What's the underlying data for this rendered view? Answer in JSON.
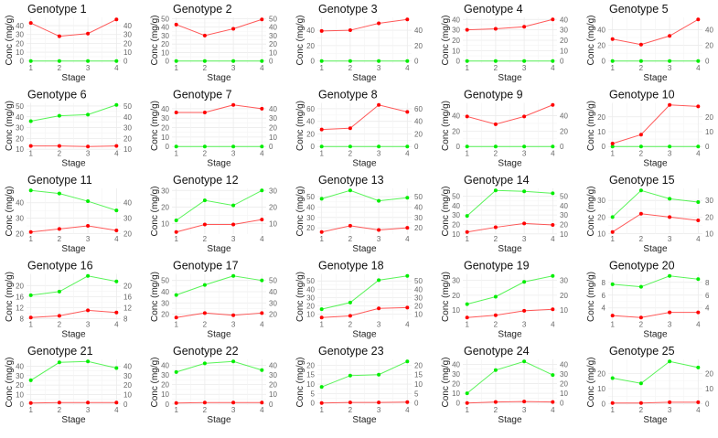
{
  "chart_data": {
    "type": "line",
    "layout": "5x5 small multiples",
    "xlabel": "Stage",
    "ylabel": "Conc (mg/g)",
    "x": [
      1,
      2,
      3,
      4
    ],
    "grid": true,
    "secondary_axis": "right, duplicate of left",
    "colors": {
      "red_series": "#ff0000",
      "green_series": "#00ee00"
    },
    "panels": [
      {
        "title": "Genotype 1",
        "yticks": [
          0,
          10,
          20,
          30,
          40
        ],
        "red": [
          43,
          28,
          31,
          47
        ],
        "green": [
          0,
          0,
          0,
          0
        ]
      },
      {
        "title": "Genotype 2",
        "yticks": [
          0,
          10,
          20,
          30,
          40,
          50
        ],
        "red": [
          43,
          30,
          38,
          49
        ],
        "green": [
          0,
          0,
          0,
          0
        ]
      },
      {
        "title": "Genotype 3",
        "yticks": [
          0,
          20,
          40
        ],
        "red": [
          39,
          40,
          49,
          54
        ],
        "green": [
          0,
          0,
          0,
          0
        ]
      },
      {
        "title": "Genotype 4",
        "yticks": [
          0,
          10,
          20,
          30,
          40
        ],
        "red": [
          30,
          31,
          33,
          40
        ],
        "green": [
          0,
          0,
          0,
          0
        ]
      },
      {
        "title": "Genotype 5",
        "yticks": [
          0,
          20,
          40
        ],
        "red": [
          28,
          21,
          32,
          53
        ],
        "green": [
          0,
          0,
          0,
          0
        ]
      },
      {
        "title": "Genotype 6",
        "yticks": [
          10,
          20,
          30,
          40,
          50
        ],
        "red": [
          13,
          13,
          12.5,
          13
        ],
        "green": [
          36,
          41,
          42,
          51
        ]
      },
      {
        "title": "Genotype 7",
        "yticks": [
          0,
          10,
          20,
          30,
          40
        ],
        "red": [
          36,
          36,
          44,
          40
        ],
        "green": [
          0,
          0,
          0,
          0
        ]
      },
      {
        "title": "Genotype 8",
        "yticks": [
          0,
          20,
          40,
          60
        ],
        "red": [
          27,
          29,
          66,
          55
        ],
        "green": [
          0,
          0,
          0,
          0
        ]
      },
      {
        "title": "Genotype 9",
        "yticks": [
          0,
          20,
          40
        ],
        "red": [
          39,
          29,
          39,
          54
        ],
        "green": [
          0,
          0,
          0,
          0
        ]
      },
      {
        "title": "Genotype 10",
        "yticks": [
          0,
          10,
          20
        ],
        "red": [
          2,
          8,
          28,
          27
        ],
        "green": [
          0,
          0,
          0,
          0
        ]
      },
      {
        "title": "Genotype 11",
        "yticks": [
          20,
          30,
          40
        ],
        "red": [
          21,
          23,
          25,
          22
        ],
        "green": [
          48,
          46,
          41,
          35
        ]
      },
      {
        "title": "Genotype 12",
        "yticks": [
          10,
          20,
          30
        ],
        "red": [
          5,
          9.5,
          9.5,
          12.5
        ],
        "green": [
          12,
          24,
          21,
          30
        ]
      },
      {
        "title": "Genotype 13",
        "yticks": [
          20,
          30,
          40,
          50
        ],
        "red": [
          16,
          22,
          18,
          20
        ],
        "green": [
          48,
          56,
          46,
          49
        ]
      },
      {
        "title": "Genotype 14",
        "yticks": [
          10,
          20,
          30,
          40,
          50
        ],
        "red": [
          12,
          17,
          21,
          19.5
        ],
        "green": [
          29,
          56,
          55,
          53
        ]
      },
      {
        "title": "Genotype 15",
        "yticks": [
          10,
          20,
          30
        ],
        "red": [
          11,
          22,
          20,
          18
        ],
        "green": [
          20,
          36,
          31,
          29
        ]
      },
      {
        "title": "Genotype 16",
        "yticks": [
          8,
          12,
          16,
          20
        ],
        "red": [
          8.4,
          9,
          11,
          10.2
        ],
        "green": [
          16.5,
          17.8,
          23.5,
          21.5
        ]
      },
      {
        "title": "Genotype 17",
        "yticks": [
          20,
          30,
          40,
          50
        ],
        "red": [
          17,
          21,
          19,
          21
        ],
        "green": [
          37,
          46,
          54,
          50
        ]
      },
      {
        "title": "Genotype 18",
        "yticks": [
          10,
          20,
          30,
          40,
          50
        ],
        "red": [
          6,
          8,
          17,
          18
        ],
        "green": [
          16,
          24,
          51,
          56
        ]
      },
      {
        "title": "Genotype 19",
        "yticks": [
          10,
          20,
          30
        ],
        "red": [
          5,
          6.5,
          9.5,
          10.5
        ],
        "green": [
          14,
          19,
          29,
          33
        ]
      },
      {
        "title": "Genotype 20",
        "yticks": [
          4,
          6,
          8
        ],
        "red": [
          2.8,
          2.5,
          3.3,
          3.3
        ],
        "green": [
          7.7,
          7.3,
          9,
          8.5
        ]
      },
      {
        "title": "Genotype 21",
        "yticks": [
          0,
          10,
          20,
          30,
          40
        ],
        "red": [
          1,
          1.5,
          1.5,
          1.5
        ],
        "green": [
          25,
          44,
          45,
          38
        ]
      },
      {
        "title": "Genotype 22",
        "yticks": [
          0,
          10,
          20,
          30,
          40
        ],
        "red": [
          1,
          1.5,
          1.5,
          1.5
        ],
        "green": [
          33,
          42,
          44,
          35
        ]
      },
      {
        "title": "Genotype 23",
        "yticks": [
          0,
          5,
          10,
          15,
          20
        ],
        "red": [
          0,
          0.3,
          0.3,
          0.5
        ],
        "green": [
          8.5,
          14.5,
          15,
          22
        ]
      },
      {
        "title": "Genotype 24",
        "yticks": [
          0,
          10,
          20,
          30,
          40
        ],
        "red": [
          0,
          1,
          1.5,
          1
        ],
        "green": [
          10,
          34,
          43,
          29
        ]
      },
      {
        "title": "Genotype 25",
        "yticks": [
          0,
          10,
          20
        ],
        "red": [
          0.5,
          0.5,
          1,
          1
        ],
        "green": [
          17,
          13.5,
          28,
          24
        ]
      }
    ]
  }
}
